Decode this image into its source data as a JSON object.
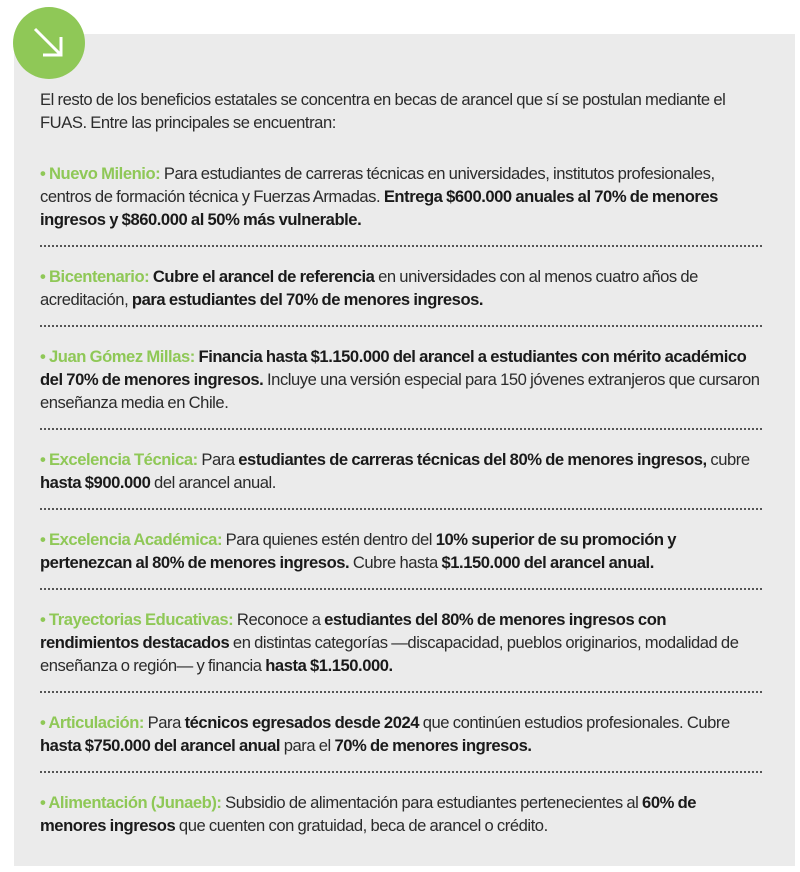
{
  "accent_color": "#8fc857",
  "badge_icon": "arrow-down-right-icon",
  "intro": "El resto de los beneficios estatales se concentra en becas de arancel que sí se postulan mediante el FUAS. Entre las principales se encuentran:",
  "items": [
    {
      "title": "• Nuevo Milenio:",
      "segments": [
        {
          "text": " Para estudiantes de carreras técnicas en universidades, institutos profesionales, centros de formación técnica y Fuerzas Armadas. ",
          "bold": false
        },
        {
          "text": "Entrega $600.000 anuales al 70% de menores ingresos y $860.000 al 50% más vulnerable.",
          "bold": true
        }
      ]
    },
    {
      "title": "• Bicentenario:",
      "segments": [
        {
          "text": " Cubre el arancel de referencia",
          "bold": true
        },
        {
          "text": " en universidades con al menos cuatro años de acreditación, ",
          "bold": false
        },
        {
          "text": "para estudiantes del 70% de menores ingresos.",
          "bold": true
        }
      ]
    },
    {
      "title": "• Juan Gómez Millas:",
      "segments": [
        {
          "text": " Financia hasta $1.150.000 del arancel a estudiantes con mérito académico del 70% de menores ingresos.",
          "bold": true
        },
        {
          "text": " Incluye una versión especial para 150 jóvenes extranjeros que cursaron enseñanza media en Chile.",
          "bold": false
        }
      ]
    },
    {
      "title": "• Excelencia Técnica:",
      "segments": [
        {
          "text": " Para ",
          "bold": false
        },
        {
          "text": "estudiantes de carreras técnicas del 80% de menores ingresos,",
          "bold": true
        },
        {
          "text": " cubre ",
          "bold": false
        },
        {
          "text": "hasta $900.000",
          "bold": true
        },
        {
          "text": " del arancel anual.",
          "bold": false
        }
      ]
    },
    {
      "title": "• Excelencia Académica:",
      "segments": [
        {
          "text": " Para quienes estén dentro del ",
          "bold": false
        },
        {
          "text": "10% superior de su promoción y pertenezcan al 80% de menores ingresos.",
          "bold": true
        },
        {
          "text": " Cubre hasta ",
          "bold": false
        },
        {
          "text": "$1.150.000 del arancel anual.",
          "bold": true
        }
      ]
    },
    {
      "title": "• Trayectorias Educativas:",
      "segments": [
        {
          "text": " Reconoce a ",
          "bold": false
        },
        {
          "text": "estudiantes del 80% de menores ingresos con rendimientos destacados",
          "bold": true
        },
        {
          "text": " en distintas categorías —discapacidad, pueblos originarios, modalidad de enseñanza o región— y financia ",
          "bold": false
        },
        {
          "text": "hasta $1.150.000.",
          "bold": true
        }
      ]
    },
    {
      "title": "• Articulación:",
      "segments": [
        {
          "text": " Para ",
          "bold": false
        },
        {
          "text": "técnicos egresados desde 2024",
          "bold": true
        },
        {
          "text": " que continúen estudios profesionales. Cubre ",
          "bold": false
        },
        {
          "text": "hasta $750.000 del arancel anual",
          "bold": true
        },
        {
          "text": " para el ",
          "bold": false
        },
        {
          "text": "70% de menores ingresos.",
          "bold": true
        }
      ]
    },
    {
      "title": "• Alimentación (Junaeb):",
      "segments": [
        {
          "text": " Subsidio de alimentación para estudiantes pertenecientes al ",
          "bold": false
        },
        {
          "text": "60% de menores ingresos",
          "bold": true
        },
        {
          "text": " que cuenten con gratuidad, beca de arancel o crédito.",
          "bold": false
        }
      ]
    }
  ]
}
